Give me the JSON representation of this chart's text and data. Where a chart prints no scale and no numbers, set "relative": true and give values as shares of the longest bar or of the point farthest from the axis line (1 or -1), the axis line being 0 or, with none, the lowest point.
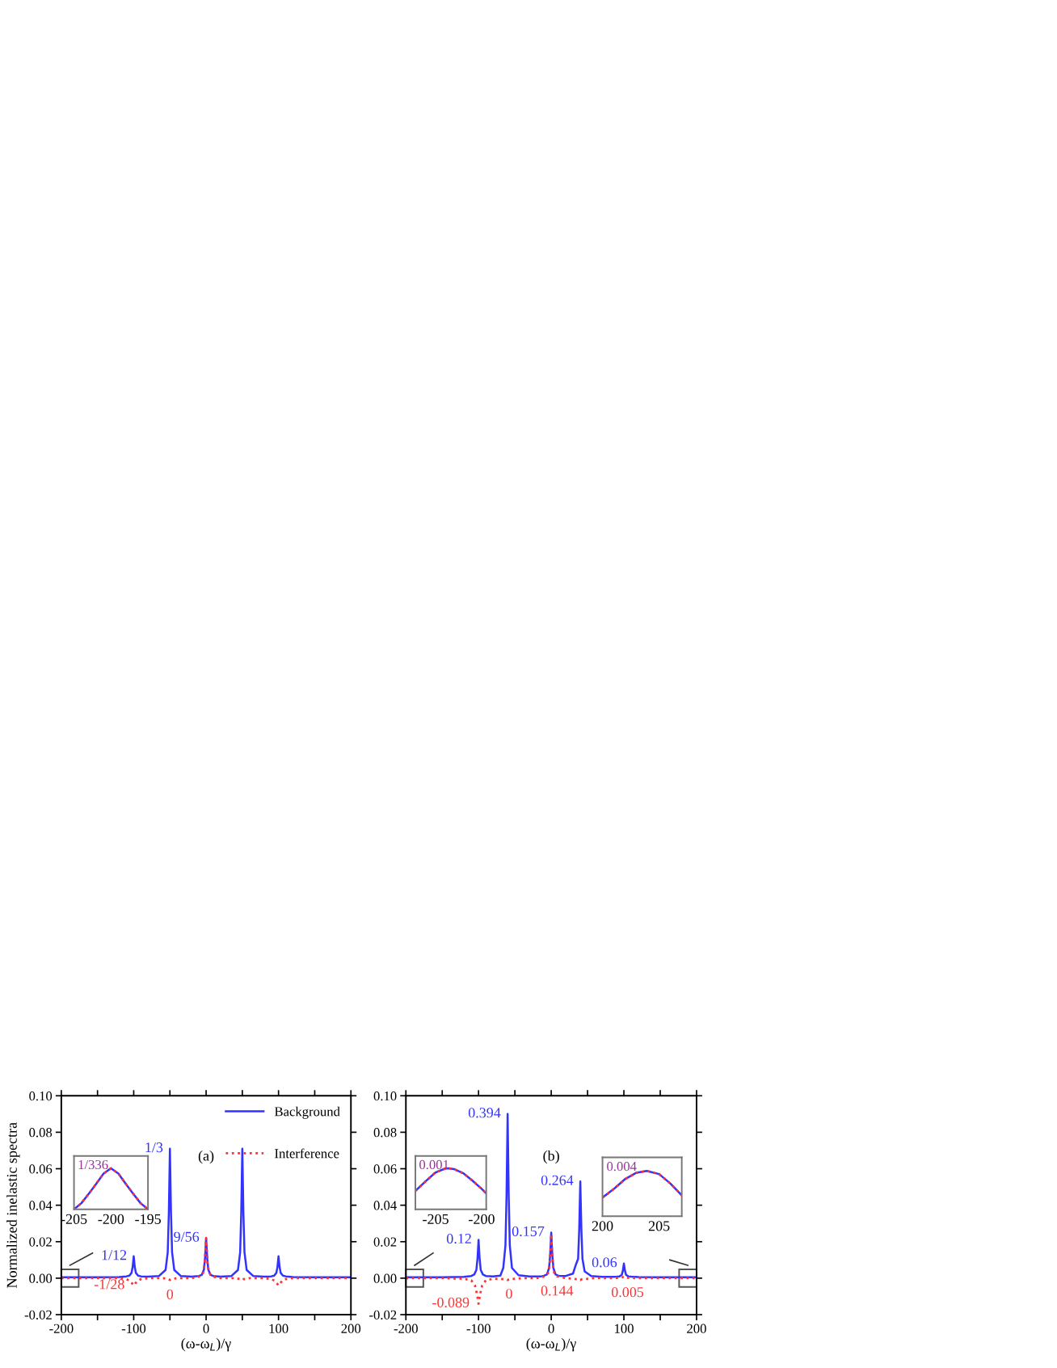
{
  "chart_data": [
    {
      "type": "line",
      "xlabel": "(ω-ω$_{L}$)/γ",
      "ylabel": "Normalized inelastic spectra",
      "xlim": [
        -200,
        200
      ],
      "ylim": [
        -0.02,
        0.1
      ],
      "xticks": [
        -200,
        {
          "value": -150,
          "label": null
        },
        -100,
        {
          "value": -50,
          "label": null
        },
        0,
        {
          "value": 50,
          "label": null
        },
        100,
        {
          "value": 150,
          "label": null
        },
        200
      ],
      "yticks": [
        {
          "value": -0.02,
          "label": "-0.02"
        },
        {
          "value": 0,
          "label": "0.00"
        },
        {
          "value": 0.02,
          "label": "0.02"
        },
        {
          "value": 0.04,
          "label": "0.04"
        },
        {
          "value": 0.06,
          "label": "0.06"
        },
        {
          "value": 0.08,
          "label": "0.08"
        },
        {
          "value": 0.1,
          "label": "0.10"
        }
      ],
      "legend": "top right",
      "grid": false,
      "series": [
        {
          "name": "Background",
          "color": "#3333ff",
          "line_style": "solid",
          "x": [
            -200,
            -150,
            -120,
            -110,
            -106,
            -103,
            -101.5,
            -100,
            -98.5,
            -97,
            -94,
            -90,
            -80,
            -65,
            -56,
            -53,
            -51.5,
            -50,
            -48.5,
            -47,
            -44,
            -35,
            -20,
            -10,
            -6,
            -3,
            -1.5,
            0,
            1.5,
            3,
            6,
            10,
            20,
            35,
            44,
            47,
            48.5,
            50,
            51.5,
            53,
            56,
            65,
            80,
            90,
            94,
            97,
            98.5,
            100,
            101.5,
            103,
            106,
            110,
            120,
            150,
            200
          ],
          "values": [
            0.0005,
            0.0005,
            0.0006,
            0.001,
            0.0014,
            0.0029,
            0.006,
            0.012,
            0.006,
            0.0029,
            0.0014,
            0.001,
            0.0008,
            0.0012,
            0.0045,
            0.0142,
            0.0355,
            0.071,
            0.0355,
            0.0142,
            0.0045,
            0.0012,
            0.0008,
            0.0012,
            0.0018,
            0.0047,
            0.011,
            0.022,
            0.011,
            0.0047,
            0.0018,
            0.0012,
            0.0008,
            0.0012,
            0.0045,
            0.0142,
            0.0355,
            0.071,
            0.0355,
            0.0142,
            0.0045,
            0.0012,
            0.0008,
            0.001,
            0.0014,
            0.0029,
            0.006,
            0.012,
            0.006,
            0.0029,
            0.0014,
            0.001,
            0.0006,
            0.0005,
            0.0005
          ]
        },
        {
          "name": "Interference",
          "color": "#ff3333",
          "line_style": "dotted",
          "x": [
            -200,
            -150,
            -120,
            -110,
            -105,
            -102,
            -100,
            -98,
            -95,
            -90,
            -80,
            -60,
            -52,
            -50,
            -48,
            -40,
            -20,
            -8,
            -4,
            -2,
            -1,
            0,
            1,
            2,
            4,
            8,
            20,
            40,
            48,
            50,
            52,
            60,
            80,
            90,
            95,
            98,
            100,
            102,
            105,
            110,
            120,
            150,
            200
          ],
          "values": [
            0,
            0,
            0,
            -0.0005,
            -0.0015,
            -0.003,
            -0.004,
            -0.003,
            -0.0015,
            -0.0005,
            0,
            0,
            -0.0005,
            -0.001,
            -0.0005,
            0,
            0,
            0.001,
            0.003,
            0.008,
            0.015,
            0.022,
            0.015,
            0.008,
            0.003,
            0.001,
            0,
            0,
            -0.0005,
            -0.001,
            -0.0005,
            0,
            0,
            -0.0005,
            -0.0015,
            -0.003,
            -0.004,
            -0.003,
            -0.0015,
            -0.0005,
            0,
            0,
            0
          ]
        }
      ],
      "annotations": [
        "(a)",
        {
          "text": "1/3",
          "x": -50,
          "y": 0.071
        },
        {
          "text": "9/56",
          "x": 0,
          "y": 0.022
        },
        {
          "text": "1/12",
          "x": -100,
          "y": 0.012
        },
        {
          "text": "-1/28",
          "x": -100,
          "y": -0.004
        },
        {
          "text": "0",
          "x": -50,
          "y": -0.001
        }
      ]
    },
    {
      "type": "line",
      "relative": true,
      "tick_labels": "x",
      "xlim": [
        -205,
        -195
      ],
      "xticks": [
        -205,
        -200,
        -195
      ],
      "series": [
        {
          "color": "#3333ff",
          "line_style": "solid",
          "x": [
            -205,
            -204,
            -203,
            -202,
            -201,
            -200,
            -199,
            -198,
            -197,
            -196,
            -195
          ],
          "values": [
            0,
            0.15,
            0.38,
            0.62,
            0.87,
            1,
            0.87,
            0.62,
            0.38,
            0.15,
            0
          ]
        },
        {
          "color": "#ff3333",
          "line_style": "dotted",
          "x": [
            -205,
            -204,
            -203,
            -202,
            -201,
            -200,
            -199,
            -198,
            -197,
            -196,
            -195
          ],
          "values": [
            0,
            0.15,
            0.38,
            0.62,
            0.87,
            1,
            0.87,
            0.62,
            0.38,
            0.15,
            0
          ]
        }
      ],
      "annotations": [
        "1/336"
      ]
    },
    {
      "type": "line",
      "xlabel": "(ω-ω$_{L}$)/γ",
      "xlim": [
        -200,
        200
      ],
      "ylim": [
        -0.02,
        0.1
      ],
      "xticks": [
        -200,
        {
          "value": -150,
          "label": null
        },
        -100,
        {
          "value": -50,
          "label": null
        },
        0,
        {
          "value": 50,
          "label": null
        },
        100,
        {
          "value": 150,
          "label": null
        },
        200
      ],
      "yticks": [
        {
          "value": -0.02,
          "label": "-0.02"
        },
        {
          "value": 0,
          "label": "0.00"
        },
        {
          "value": 0.02,
          "label": "0.02"
        },
        {
          "value": 0.04,
          "label": "0.04"
        },
        {
          "value": 0.06,
          "label": "0.06"
        },
        {
          "value": 0.08,
          "label": "0.08"
        },
        {
          "value": 0.1,
          "label": "0.10"
        }
      ],
      "grid": false,
      "series": [
        {
          "color": "#3333ff",
          "line_style": "solid",
          "x": [
            -200,
            -150,
            -120,
            -110,
            -106,
            -103,
            -101.5,
            -100,
            -98.5,
            -97,
            -94,
            -90,
            -80,
            -70,
            -66,
            -63,
            -61.5,
            -60,
            -58.5,
            -57,
            -54,
            -45,
            -30,
            -15,
            -10,
            -6,
            -3,
            -1.5,
            0,
            1.5,
            3,
            6,
            10,
            20,
            30,
            34,
            37,
            38.5,
            40,
            41.5,
            43,
            46,
            55,
            70,
            85,
            90,
            94,
            97,
            98.5,
            100,
            101.5,
            103,
            106,
            110,
            120,
            150,
            200
          ],
          "values": [
            0.0005,
            0.0005,
            0.0007,
            0.0012,
            0.002,
            0.0045,
            0.0105,
            0.021,
            0.0105,
            0.0045,
            0.002,
            0.0012,
            0.0009,
            0.0014,
            0.0056,
            0.018,
            0.045,
            0.09,
            0.045,
            0.018,
            0.0056,
            0.0016,
            0.0009,
            0.0009,
            0.0013,
            0.002,
            0.0055,
            0.0125,
            0.025,
            0.0125,
            0.0055,
            0.002,
            0.0013,
            0.0012,
            0.0025,
            0.0075,
            0.0106,
            0.0265,
            0.053,
            0.0265,
            0.0106,
            0.0037,
            0.0012,
            0.0007,
            0.0007,
            0.0008,
            0.001,
            0.0018,
            0.004,
            0.008,
            0.004,
            0.0018,
            0.001,
            0.0008,
            0.0006,
            0.0005,
            0.0005
          ]
        },
        {
          "color": "#ff3333",
          "line_style": "dotted",
          "x": [
            -200,
            -150,
            -120,
            -110,
            -105,
            -102,
            -100,
            -98,
            -95,
            -90,
            -80,
            -62,
            -60,
            -58,
            -40,
            -20,
            -8,
            -4,
            -2,
            -1,
            0,
            1,
            2,
            4,
            8,
            20,
            38,
            40,
            42,
            60,
            80,
            95,
            98,
            100,
            102,
            105,
            120,
            150,
            200
          ],
          "values": [
            0,
            0,
            -0.0003,
            -0.0012,
            -0.004,
            -0.009,
            -0.014,
            -0.009,
            -0.004,
            -0.0012,
            -0.0003,
            -0.0006,
            -0.001,
            -0.0006,
            0,
            0,
            0.001,
            0.003,
            0.0085,
            0.0155,
            0.024,
            0.0155,
            0.0085,
            0.003,
            0.001,
            0,
            -0.0006,
            -0.001,
            -0.0006,
            0,
            0,
            0.0002,
            0.0005,
            0.001,
            0.0005,
            0.0002,
            0,
            0,
            0
          ]
        }
      ],
      "annotations": [
        "(b)",
        {
          "text": "0.394",
          "x": -60,
          "y": 0.09
        },
        {
          "text": "0.12",
          "x": -100,
          "y": 0.021
        },
        {
          "text": "-0.089",
          "x": -100,
          "y": -0.014
        },
        {
          "text": "0",
          "x": -58,
          "y": -0.0006
        },
        {
          "text": "0.157",
          "x": 0,
          "y": 0.025
        },
        {
          "text": "0.264",
          "x": 40,
          "y": 0.053
        },
        {
          "text": "0.06",
          "x": 100,
          "y": 0.008
        },
        {
          "text": "0.144",
          "x": 8,
          "y": 0.001
        },
        {
          "text": "0.005",
          "x": 105,
          "y": 0.0002
        }
      ]
    },
    {
      "type": "line",
      "relative": true,
      "tick_labels": "x",
      "xlim": [
        -207.2,
        -199.5
      ],
      "xticks": [
        -205,
        -200
      ],
      "series": [
        {
          "color": "#3333ff",
          "line_style": "solid",
          "x": [
            -207.2,
            -206,
            -205,
            -204,
            -203.6,
            -203,
            -202,
            -201,
            -200,
            -199.5
          ],
          "values": [
            0.45,
            0.7,
            0.9,
            0.99,
            1,
            0.98,
            0.88,
            0.7,
            0.5,
            0.39
          ]
        },
        {
          "color": "#ff3333",
          "line_style": "dotted",
          "x": [
            -207.2,
            -206,
            -205,
            -204,
            -203.6,
            -203,
            -202,
            -201,
            -200,
            -199.5
          ],
          "values": [
            0.45,
            0.7,
            0.9,
            0.99,
            1,
            0.98,
            0.88,
            0.7,
            0.5,
            0.39
          ]
        }
      ],
      "annotations": [
        "0.001"
      ]
    },
    {
      "type": "line",
      "relative": true,
      "tick_labels": "x",
      "xlim": [
        200,
        207
      ],
      "xticks": [
        200,
        205
      ],
      "series": [
        {
          "color": "#3333ff",
          "line_style": "solid",
          "x": [
            200,
            201,
            202,
            203,
            203.9,
            205,
            206,
            207
          ],
          "values": [
            0.41,
            0.6,
            0.82,
            0.96,
            1,
            0.93,
            0.72,
            0.46
          ]
        },
        {
          "color": "#ff3333",
          "line_style": "dotted",
          "x": [
            200,
            201,
            202,
            203,
            203.9,
            205,
            206,
            207
          ],
          "values": [
            0.41,
            0.6,
            0.82,
            0.96,
            1,
            0.93,
            0.72,
            0.46
          ]
        }
      ],
      "annotations": [
        "0.004"
      ]
    }
  ]
}
